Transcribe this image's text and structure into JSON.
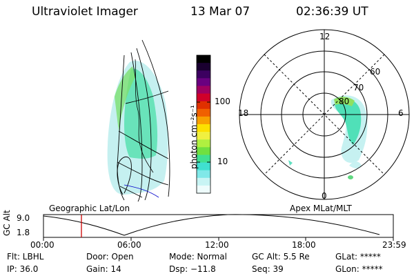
{
  "header": {
    "instrument": "Ultraviolet Imager",
    "date": "13 Mar 07",
    "time": "02:36:39 UT"
  },
  "colorbar": {
    "unit_label": "photon cm⁻²s⁻¹",
    "ticks": [
      "100",
      "10"
    ],
    "colors": [
      "#000000",
      "#1a0030",
      "#3c0060",
      "#6a0080",
      "#a00060",
      "#d0002a",
      "#e03000",
      "#f06000",
      "#f8a000",
      "#fce000",
      "#f0f040",
      "#b0f040",
      "#70e040",
      "#40e090",
      "#40e0d0",
      "#80e8e8",
      "#c8f4f4",
      "#eefcfc"
    ]
  },
  "polar_plot": {
    "mlt_labels": [
      "12",
      "18",
      "6",
      "0"
    ],
    "lat_labels": [
      "60",
      "70",
      "80"
    ]
  },
  "timeline": {
    "left_title": "Geographic Lat/Lon",
    "right_title": "Apex MLat/MLT",
    "y_axis_label": "GC Alt",
    "y_max_label": "9.0",
    "y_min_label": "1.8",
    "time_ticks": [
      "00:00",
      "06:00",
      "12:00",
      "18:00",
      "23:59"
    ],
    "marker_color": "#cc0000"
  },
  "status": {
    "flt": "Flt: LBHL",
    "ip": "IP: 36.0",
    "door": "Door: Open",
    "gain": "Gain: 14",
    "mode": "Mode: Normal",
    "dsp": "Dsp:  −11.8",
    "gc_alt": "GC Alt: 5.5 Re",
    "seq": "Seq: 39",
    "glat": "GLat: *****",
    "glon": "GLon: *****"
  }
}
